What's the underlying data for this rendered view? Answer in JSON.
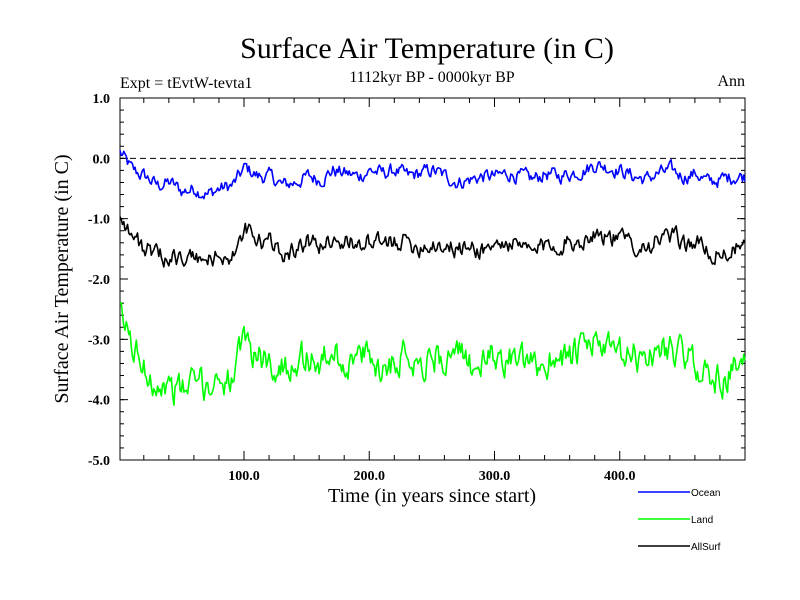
{
  "chart_data": {
    "type": "line",
    "title": "Surface Air Temperature (in C)",
    "subtitle": "1112kyr BP - 0000kyr BP",
    "left_label": "Expt = tEvtW-tevta1",
    "right_label": "Ann",
    "xlabel": "Time (in years since start)",
    "ylabel": "Surface Air Temperature (in C)",
    "xlim": [
      1,
      500
    ],
    "ylim": [
      -5.0,
      1.0
    ],
    "xticks": [
      100,
      200,
      300,
      400
    ],
    "xtick_labels": [
      "100.0",
      "200.0",
      "300.0",
      "400.0"
    ],
    "yticks": [
      1.0,
      0.0,
      -1.0,
      -2.0,
      -3.0,
      -4.0,
      -5.0
    ],
    "ytick_labels": [
      "1.0",
      "0.0",
      "-1.0",
      "-2.0",
      "-3.0",
      "-4.0",
      "-5.0"
    ],
    "reference_line": 0.0,
    "legend_position": "below-right",
    "series": [
      {
        "name": "Ocean",
        "color": "#0000ff",
        "sample_every_years": 10,
        "values": [
          0.1,
          -0.2,
          -0.3,
          -0.45,
          -0.4,
          -0.55,
          -0.5,
          -0.6,
          -0.5,
          -0.45,
          -0.15,
          -0.3,
          -0.3,
          -0.45,
          -0.4,
          -0.3,
          -0.35,
          -0.2,
          -0.25,
          -0.3,
          -0.2,
          -0.25,
          -0.2,
          -0.3,
          -0.25,
          -0.2,
          -0.3,
          -0.4,
          -0.35,
          -0.3,
          -0.3,
          -0.25,
          -0.3,
          -0.35,
          -0.25,
          -0.3,
          -0.25,
          -0.2,
          -0.1,
          -0.15,
          -0.2,
          -0.3,
          -0.35,
          -0.25,
          -0.2,
          -0.3,
          -0.25,
          -0.4,
          -0.35,
          -0.3
        ]
      },
      {
        "name": "Land",
        "color": "#00ff00",
        "sample_every_years": 10,
        "values": [
          -2.6,
          -3.1,
          -3.5,
          -3.7,
          -3.8,
          -3.85,
          -3.7,
          -3.8,
          -3.6,
          -3.7,
          -3.0,
          -3.3,
          -3.4,
          -3.5,
          -3.3,
          -3.3,
          -3.4,
          -3.2,
          -3.4,
          -3.3,
          -3.3,
          -3.5,
          -3.3,
          -3.2,
          -3.4,
          -3.3,
          -3.3,
          -3.3,
          -3.4,
          -3.4,
          -3.3,
          -3.3,
          -3.4,
          -3.5,
          -3.4,
          -3.2,
          -3.3,
          -3.2,
          -3.0,
          -3.2,
          -3.3,
          -3.3,
          -3.3,
          -3.2,
          -3.1,
          -3.3,
          -3.4,
          -3.6,
          -3.7,
          -3.5
        ]
      },
      {
        "name": "AllSurf",
        "color": "#000000",
        "sample_every_years": 10,
        "values": [
          -0.9,
          -1.3,
          -1.5,
          -1.65,
          -1.6,
          -1.7,
          -1.65,
          -1.7,
          -1.6,
          -1.65,
          -1.2,
          -1.4,
          -1.4,
          -1.55,
          -1.5,
          -1.4,
          -1.45,
          -1.3,
          -1.4,
          -1.4,
          -1.4,
          -1.45,
          -1.35,
          -1.4,
          -1.45,
          -1.4,
          -1.45,
          -1.5,
          -1.5,
          -1.5,
          -1.45,
          -1.4,
          -1.5,
          -1.55,
          -1.45,
          -1.4,
          -1.4,
          -1.35,
          -1.2,
          -1.3,
          -1.35,
          -1.4,
          -1.45,
          -1.35,
          -1.3,
          -1.4,
          -1.4,
          -1.55,
          -1.6,
          -1.5
        ]
      }
    ]
  }
}
